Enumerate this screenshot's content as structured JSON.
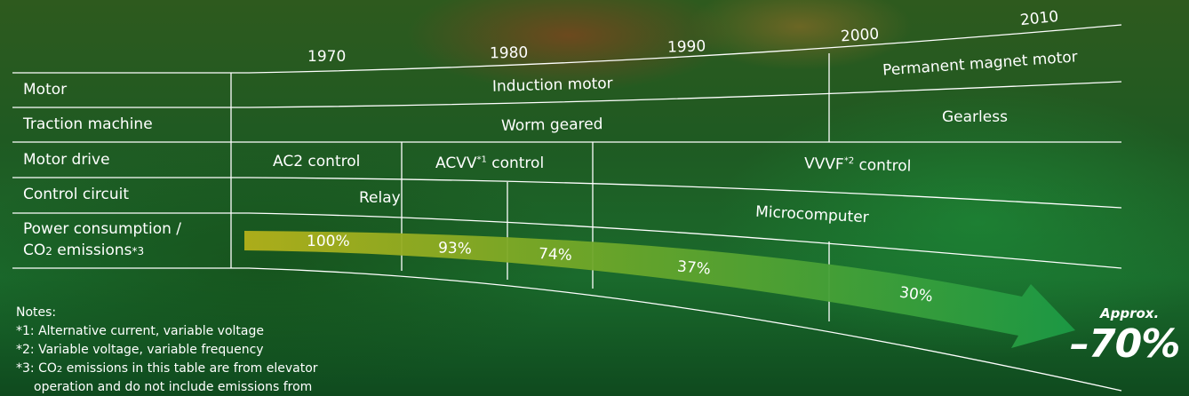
{
  "years": [
    "1970",
    "1980",
    "1990",
    "2000",
    "2010"
  ],
  "rows": {
    "motor": "Motor",
    "traction": "Traction machine",
    "drive": "Motor drive",
    "control": "Control circuit",
    "power_line1": "Power consumption /",
    "power_line2_pre": "CO",
    "power_line2_sub": "2",
    "power_line2_post": " emissions",
    "power_line2_sup": "*3"
  },
  "cells": {
    "induction": "Induction motor",
    "pm_motor": "Permanent magnet motor",
    "worm": "Worm geared",
    "gearless": "Gearless",
    "ac2": "AC2 control",
    "acvv": "ACVV",
    "acvv_sup": "*1",
    "acvv_post": " control",
    "vvvf": "VVVF",
    "vvvf_sup": "*2",
    "vvvf_post": " control",
    "relay": "Relay",
    "microcomputer": "Microcomputer"
  },
  "percentages": [
    "100%",
    "93%",
    "74%",
    "37%",
    "30%"
  ],
  "approx": {
    "label": "Approx.",
    "value": "–70%"
  },
  "notes": {
    "title": "Notes:",
    "n1": "*1: Alternative current, variable voltage",
    "n2": "*2: Variable voltage, variable frequency",
    "n3_pre": "*3: CO",
    "n3_sub": "2",
    "n3_post": " emissions in this table are from elevator",
    "n3_line2": "operation and do not include emissions from"
  },
  "colors": {
    "arrow_start": "#b4b11a",
    "arrow_end": "#1c9a45",
    "line": "#ffffff"
  }
}
